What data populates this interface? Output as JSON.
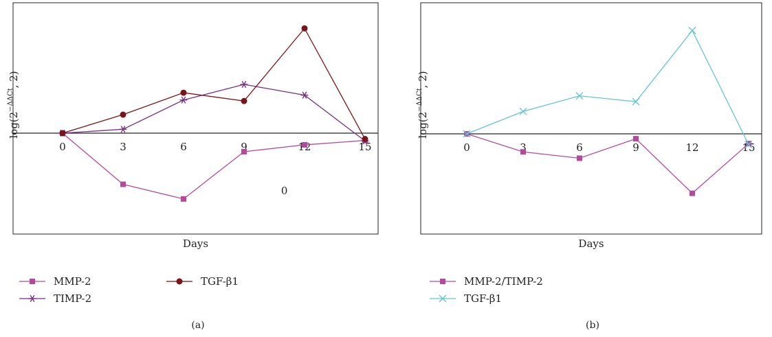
{
  "chart_data": [
    {
      "type": "line",
      "panel_label": "(a)",
      "xlabel": "Days",
      "ylabel_main": "log(2",
      "ylabel_sup": "−ΔΔCt",
      "ylabel_tail": ", 2)",
      "x": [
        0,
        3,
        6,
        9,
        12,
        15
      ],
      "ylim": [
        -2.0,
        2.8
      ],
      "grid": false,
      "legend_position": "bottom",
      "annotation": "0",
      "annotation_pos": {
        "x": 11,
        "y": -1.25
      },
      "series": [
        {
          "name": "MMP-2",
          "marker": "square",
          "color": "#b5499e",
          "values": [
            0,
            -1.05,
            -1.35,
            -0.38,
            -0.24,
            -0.15
          ]
        },
        {
          "name": "TIMP-2",
          "marker": "star",
          "color": "#7b2f86",
          "values": [
            0,
            0.08,
            0.68,
            1.0,
            0.78,
            -0.16
          ]
        },
        {
          "name": "TGF-β1",
          "marker": "circle",
          "color": "#7a1418",
          "values": [
            0,
            0.38,
            0.83,
            0.66,
            2.15,
            -0.12
          ]
        }
      ]
    },
    {
      "type": "line",
      "panel_label": "(b)",
      "xlabel": "Days",
      "ylabel_main": "log(2",
      "ylabel_sup": "−ΔΔCt",
      "ylabel_tail": ", 2)",
      "x": [
        0,
        3,
        6,
        9,
        12,
        15
      ],
      "ylim": [
        -2.0,
        2.8
      ],
      "grid": false,
      "legend_position": "bottom",
      "series": [
        {
          "name": "MMP-2/TIMP-2",
          "marker": "square",
          "color": "#b5499e",
          "values": [
            0,
            -0.37,
            -0.5,
            -0.1,
            -1.22,
            -0.2
          ]
        },
        {
          "name": "TGF-β1",
          "marker": "x",
          "color": "#62c4d4",
          "values": [
            0,
            0.46,
            0.78,
            0.66,
            2.12,
            -0.22
          ]
        }
      ]
    }
  ]
}
